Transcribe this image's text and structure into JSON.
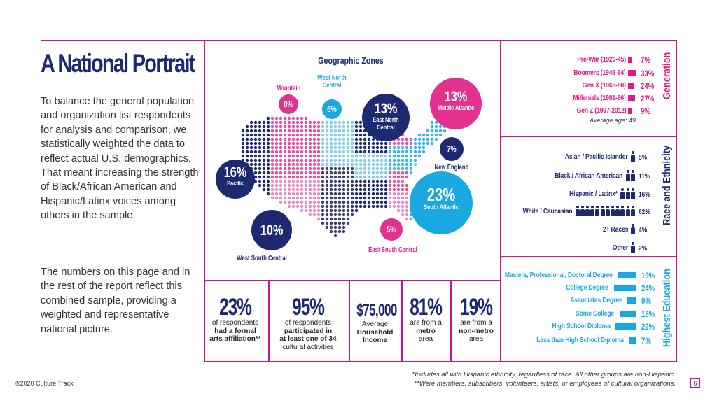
{
  "title": "A National Portrait",
  "intro_paragraphs": [
    "To balance the general population and organization list respondents for analysis and comparison, we statistically weighted the data to reflect actual U.S. demographics. That meant increasing the strength of Black/African American and Hispanic/Latinx voices among others in the sample.",
    "The numbers on this page and in the rest of the report reflect this combined sample, providing a weighted and representative national picture."
  ],
  "map": {
    "title": "Geographic Zones",
    "zones": [
      {
        "name": "Pacific",
        "value": "16%",
        "color": "#1d2a72"
      },
      {
        "name": "Mountain",
        "value": "8%",
        "color": "#e3318f"
      },
      {
        "name": "West North Central",
        "value": "6%",
        "color": "#1aa8e0"
      },
      {
        "name": "East North Central",
        "value": "13%",
        "color": "#1d2a72"
      },
      {
        "name": "Middle Atlantic",
        "value": "13%",
        "color": "#e3318f"
      },
      {
        "name": "New England",
        "value": "7%",
        "color": "#1d2a72"
      },
      {
        "name": "South Atlantic",
        "value": "23%",
        "color": "#1aa8e0"
      },
      {
        "name": "East South Central",
        "value": "5%",
        "color": "#e3318f"
      },
      {
        "name": "West South Central",
        "value": "10%",
        "color": "#1d2a72"
      }
    ]
  },
  "generation": {
    "title": "Generation",
    "rows": [
      {
        "label": "Pre-War",
        "years": "(1920-45)",
        "value": "7%",
        "pct": 7
      },
      {
        "label": "Boomers",
        "years": "(1946-64)",
        "value": "33%",
        "pct": 33
      },
      {
        "label": "Gen X",
        "years": "(1965-80)",
        "value": "24%",
        "pct": 24
      },
      {
        "label": "Millenials",
        "years": "(1981-96)",
        "value": "27%",
        "pct": 27
      },
      {
        "label": "Gen Z",
        "years": "(1997-2012)",
        "value": "9%",
        "pct": 9
      }
    ],
    "note": "Average age: 49",
    "color": "#e3168e"
  },
  "race": {
    "title": "Race and Ethnicity",
    "rows": [
      {
        "label": "Asian / Pacific Islander",
        "value": "5%",
        "pct": 5
      },
      {
        "label": "Black / African American",
        "value": "11%",
        "pct": 11
      },
      {
        "label": "Hispanic / Latinx*",
        "value": "16%",
        "pct": 16
      },
      {
        "label": "White / Caucasian",
        "value": "62%",
        "pct": 62
      },
      {
        "label": "2+ Races",
        "value": "4%",
        "pct": 4
      },
      {
        "label": "Other",
        "value": "2%",
        "pct": 2
      }
    ],
    "color": "#1d2a72"
  },
  "education": {
    "title": "Highest Education",
    "rows": [
      {
        "label": "Masters, Professional, Doctoral Degree",
        "value": "19%",
        "pct": 19
      },
      {
        "label": "College Degree",
        "value": "24%",
        "pct": 24
      },
      {
        "label": "Associates Degree",
        "value": "9%",
        "pct": 9
      },
      {
        "label": "Some College",
        "value": "18%",
        "pct": 18
      },
      {
        "label": "High School Diploma",
        "value": "22%",
        "pct": 22
      },
      {
        "label": "Less than High School Diploma",
        "value": "7%",
        "pct": 7
      }
    ],
    "color": "#1aa8e0"
  },
  "stats": [
    {
      "value": "23%",
      "line1": "of respondents",
      "bold1": "had a formal",
      "bold2": "arts affiliation**",
      "line4": ""
    },
    {
      "value": "95%",
      "line1": "of respondents",
      "bold1": "participated in",
      "bold2": "at least one of 34",
      "line4": "cultural activities"
    },
    {
      "value": "$75,000",
      "line1": "Average",
      "bold1": "Household",
      "bold2": "Income",
      "line4": ""
    },
    {
      "value": "81%",
      "line1": "are from a",
      "bold1": "metro",
      "bold2": "",
      "line4": "area"
    },
    {
      "value": "19%",
      "line1": "are from a",
      "bold1": "non-metro",
      "bold2": "",
      "line4": "area"
    }
  ],
  "footnotes": [
    "*Includes all with Hispanic ethnicity, regardless of race. All other groups are non-Hispanic.",
    "**Were members, subscribers, volunteers, artists, or employees of cultural organizations."
  ],
  "copyright": "©2020 Culture Track",
  "page_number": "6"
}
